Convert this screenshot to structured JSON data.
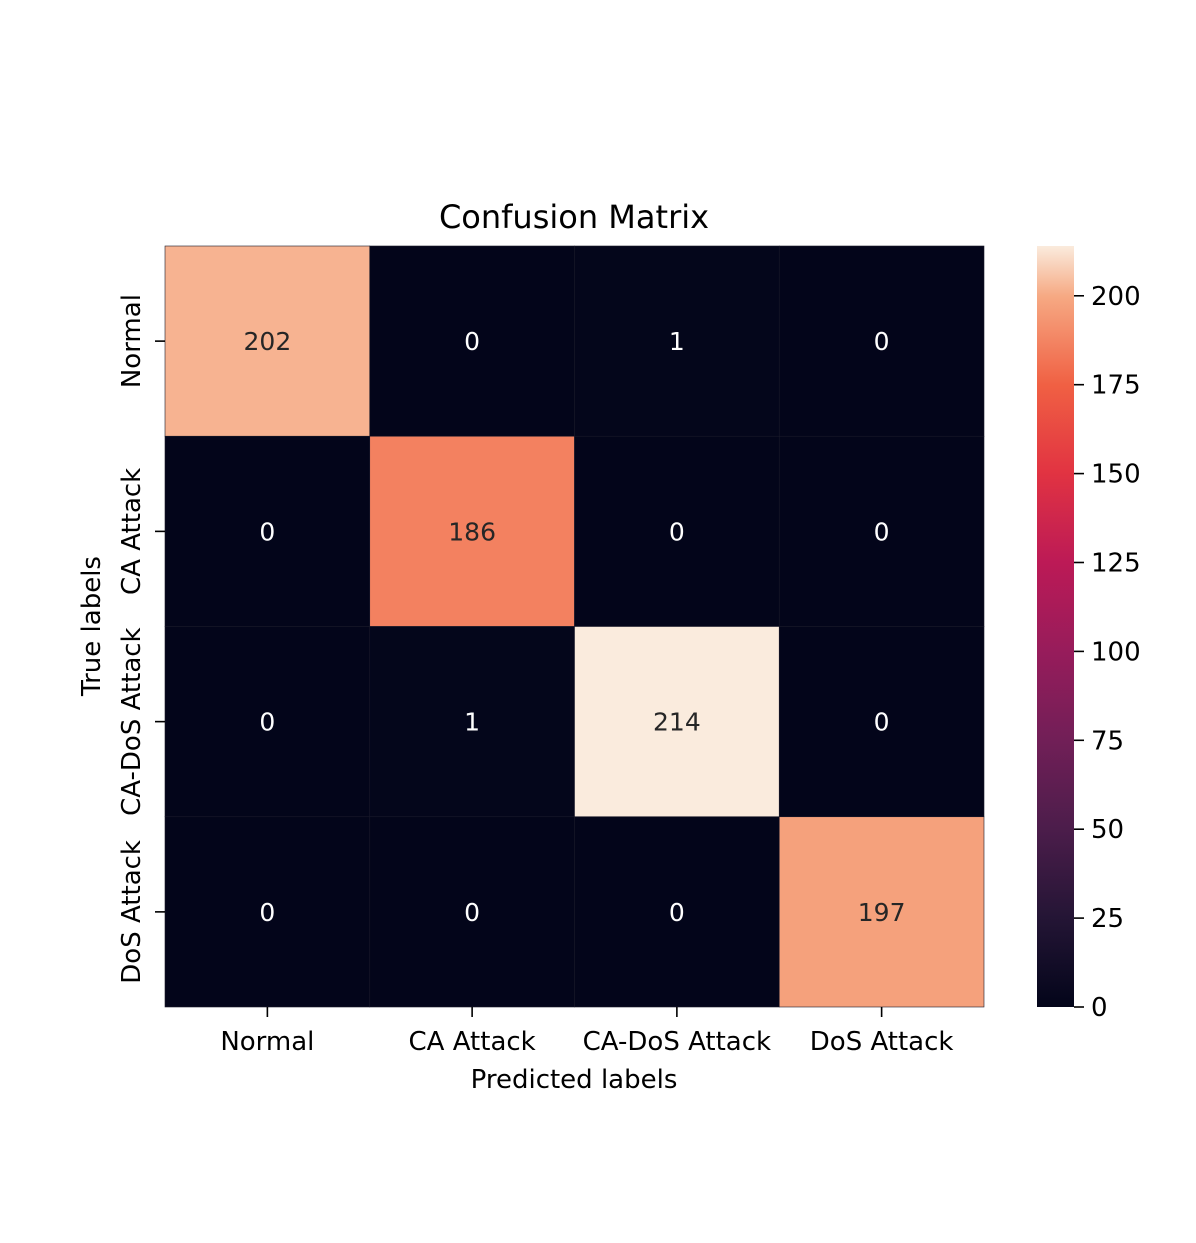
{
  "chart_data": {
    "type": "heatmap",
    "title": "Confusion Matrix",
    "xlabel": "Predicted labels",
    "ylabel": "True labels",
    "x_categories": [
      "Normal",
      "CA Attack",
      "CA-DoS Attack",
      "DoS Attack"
    ],
    "y_categories": [
      "Normal",
      "CA Attack",
      "CA-DoS Attack",
      "DoS Attack"
    ],
    "values": [
      [
        202,
        0,
        1,
        0
      ],
      [
        0,
        186,
        0,
        0
      ],
      [
        0,
        1,
        214,
        0
      ],
      [
        0,
        0,
        0,
        197
      ]
    ],
    "value_range": [
      0,
      214
    ],
    "colormap": "rocket",
    "colorbar": {
      "ticks": [
        0,
        25,
        50,
        75,
        100,
        125,
        150,
        175,
        200
      ],
      "tick_labels": [
        "0",
        "25",
        "50",
        "75",
        "100",
        "125",
        "150",
        "175",
        "200"
      ]
    },
    "colors": {
      "cell_grid_line": "#1a1a2a",
      "label_on_dark": "#ffffff",
      "label_on_light": "#262626"
    }
  }
}
